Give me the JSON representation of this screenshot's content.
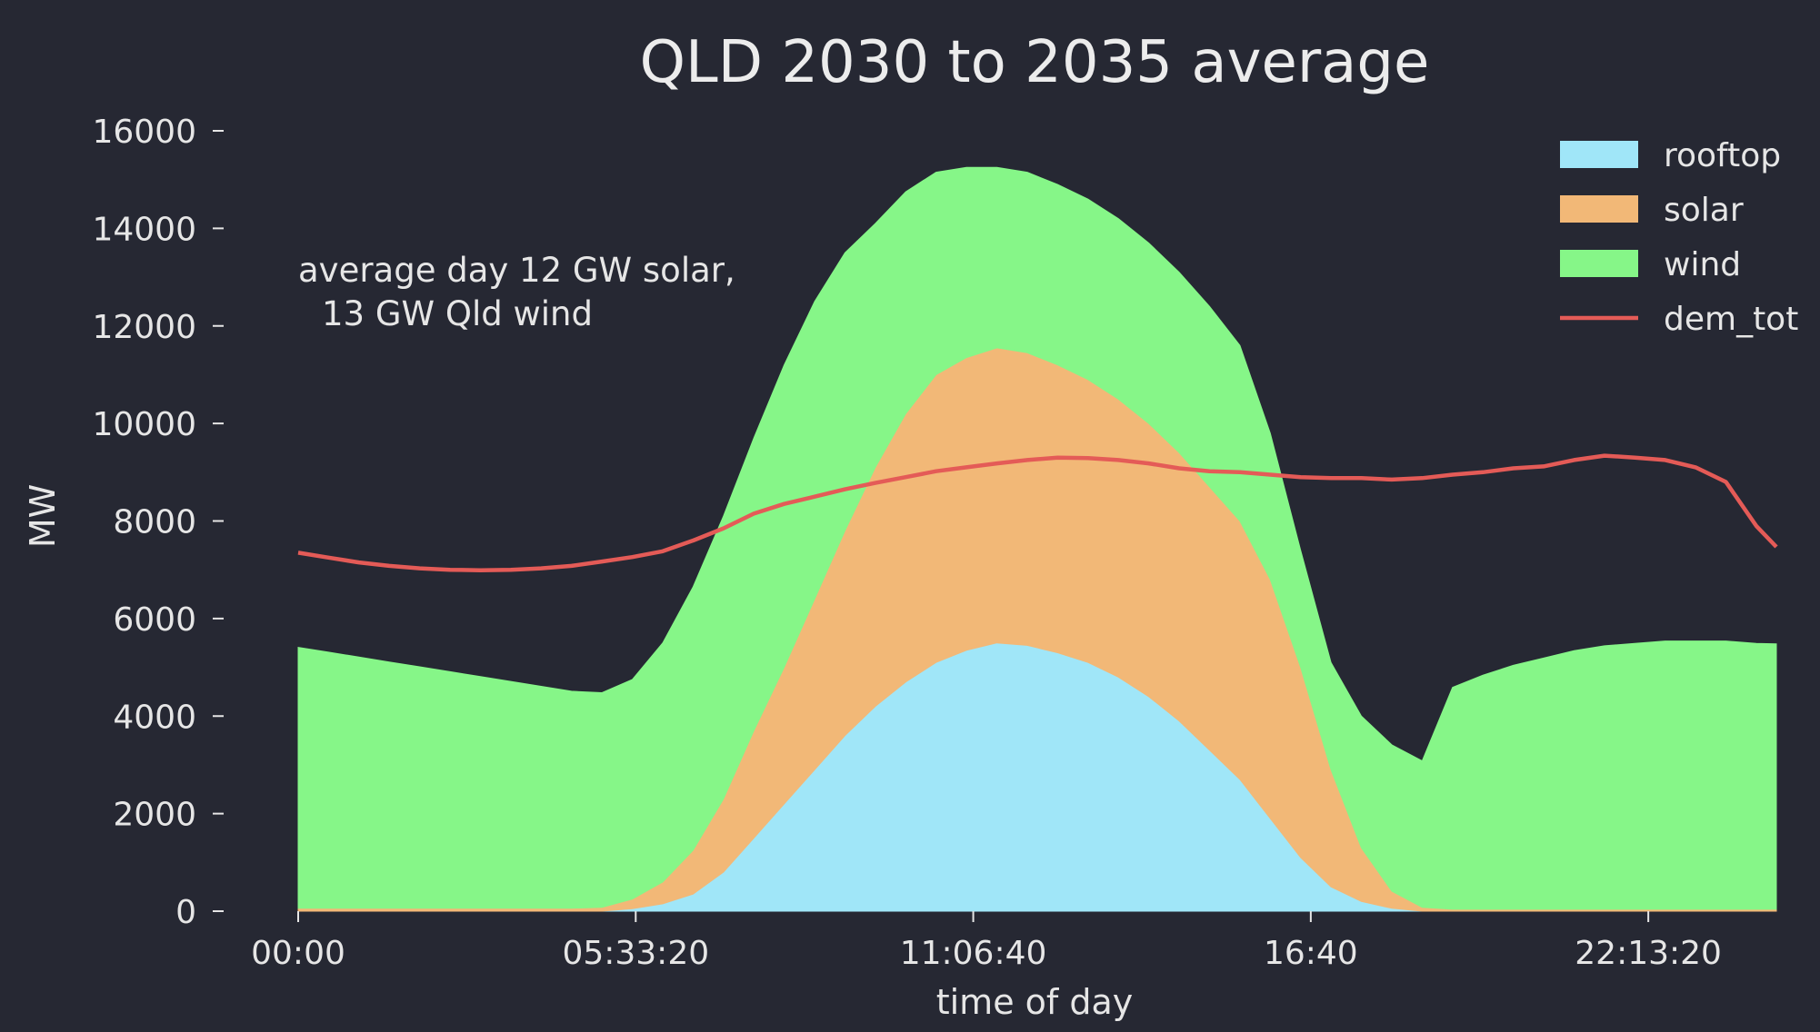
{
  "chart_data": {
    "type": "area",
    "stacked": true,
    "title": "QLD 2030 to 2035 average",
    "xlabel": "time of day",
    "ylabel": "MW",
    "ylim": [
      0,
      16000
    ],
    "xlim_hours": [
      0,
      24.33
    ],
    "x_ticks": [
      {
        "hours": 0,
        "label": "00:00"
      },
      {
        "hours": 5.5556,
        "label": "05:33:20"
      },
      {
        "hours": 11.1111,
        "label": "11:06:40"
      },
      {
        "hours": 16.6667,
        "label": "16:40"
      },
      {
        "hours": 22.2222,
        "label": "22:13:20"
      }
    ],
    "y_ticks": [
      0,
      2000,
      4000,
      6000,
      8000,
      10000,
      12000,
      14000,
      16000
    ],
    "x_hours": [
      0,
      0.5,
      1,
      1.5,
      2,
      2.5,
      3,
      3.5,
      4,
      4.5,
      5,
      5.5,
      6,
      6.5,
      7,
      7.5,
      8,
      8.5,
      9,
      9.5,
      10,
      10.5,
      11,
      11.5,
      12,
      12.5,
      13,
      13.5,
      14,
      14.5,
      15,
      15.5,
      16,
      16.5,
      17,
      17.5,
      18,
      18.5,
      19,
      19.5,
      20,
      20.5,
      21,
      21.5,
      22,
      22.5,
      23,
      23.5,
      24,
      24.33
    ],
    "series": [
      {
        "name": "rooftop",
        "color": "#a0e6f8",
        "values": [
          0,
          0,
          0,
          0,
          0,
          0,
          0,
          0,
          0,
          0,
          0,
          50,
          150,
          350,
          800,
          1500,
          2200,
          2900,
          3600,
          4200,
          4700,
          5100,
          5350,
          5500,
          5450,
          5300,
          5100,
          4800,
          4400,
          3900,
          3300,
          2700,
          1900,
          1100,
          500,
          200,
          60,
          0,
          0,
          0,
          0,
          0,
          0,
          0,
          0,
          0,
          0,
          0,
          0,
          0
        ]
      },
      {
        "name": "solar",
        "color": "#f2b877",
        "values": [
          60,
          60,
          60,
          60,
          60,
          60,
          60,
          60,
          60,
          60,
          80,
          200,
          450,
          900,
          1500,
          2200,
          2800,
          3500,
          4200,
          4900,
          5500,
          5900,
          6000,
          6050,
          6000,
          5900,
          5800,
          5700,
          5600,
          5500,
          5400,
          5300,
          4900,
          3900,
          2400,
          1100,
          350,
          80,
          40,
          40,
          40,
          40,
          40,
          40,
          40,
          40,
          40,
          40,
          40,
          40
        ]
      },
      {
        "name": "wind",
        "color": "#86f688",
        "values": [
          5350,
          5250,
          5150,
          5050,
          4950,
          4850,
          4750,
          4650,
          4550,
          4450,
          4400,
          4500,
          4900,
          5400,
          5800,
          6000,
          6200,
          6100,
          5700,
          5000,
          4550,
          4150,
          3900,
          3700,
          3700,
          3700,
          3700,
          3700,
          3700,
          3700,
          3700,
          3600,
          3000,
          2400,
          2200,
          2700,
          3000,
          3000,
          4550,
          4800,
          5000,
          5150,
          5300,
          5400,
          5450,
          5500,
          5500,
          5500,
          5450,
          5440
        ]
      }
    ],
    "line_series": {
      "name": "dem_tot",
      "color": "#e45b57",
      "values": [
        7350,
        7250,
        7150,
        7080,
        7030,
        7000,
        6990,
        7000,
        7030,
        7080,
        7170,
        7260,
        7380,
        7600,
        7850,
        8150,
        8350,
        8500,
        8650,
        8780,
        8900,
        9020,
        9100,
        9180,
        9250,
        9300,
        9290,
        9250,
        9180,
        9080,
        9020,
        9000,
        8950,
        8900,
        8880,
        8880,
        8850,
        8880,
        8950,
        9000,
        9080,
        9120,
        9250,
        9340,
        9300,
        9250,
        9100,
        8800,
        7900,
        7470
      ]
    },
    "legend": {
      "position": "top-right",
      "entries": [
        "rooftop",
        "solar",
        "wind",
        "dem_tot"
      ]
    },
    "annotation": {
      "lines": [
        "average day 12 GW solar,",
        "13 GW Qld wind"
      ]
    }
  }
}
